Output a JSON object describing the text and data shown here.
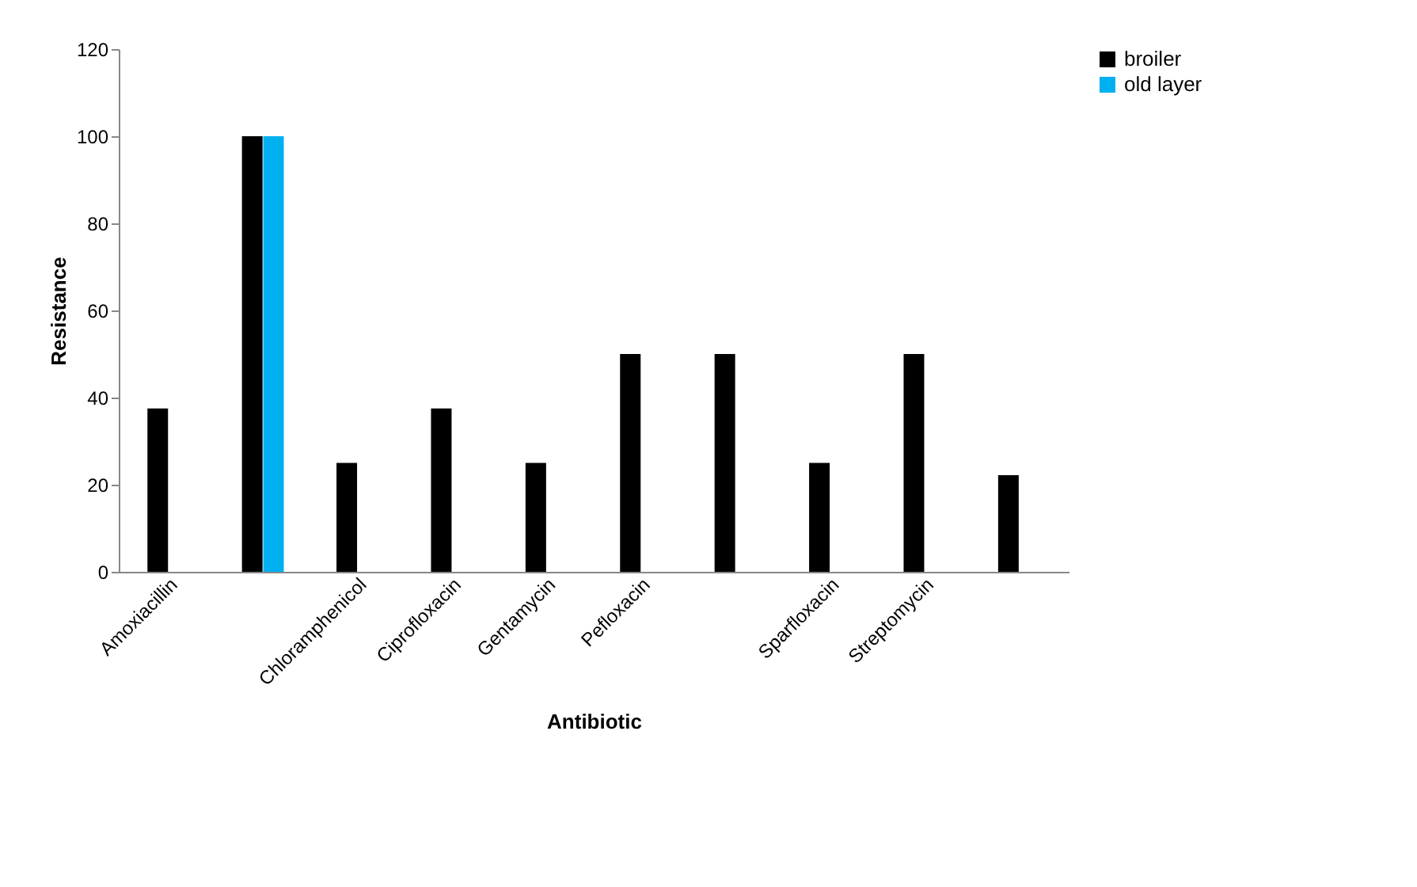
{
  "chart_data": {
    "type": "bar",
    "xlabel": "Antibiotic",
    "ylabel": "Resistance",
    "categories": [
      "Amoxiacillin",
      null,
      "Chloramphenicol",
      "Ciprofloxacin",
      "Gentamycin",
      "Pefloxacin",
      null,
      "Sparfloxacin",
      "Streptomycin",
      null
    ],
    "series": [
      {
        "name": "broiler",
        "color": "#000000",
        "values": [
          37.5,
          100,
          25,
          37.5,
          25,
          50,
          50,
          25,
          50,
          22.2
        ]
      },
      {
        "name": "old layer",
        "color": "#00b0f0",
        "values": [
          null,
          100,
          null,
          null,
          null,
          null,
          null,
          null,
          null,
          null
        ]
      }
    ],
    "ylim": [
      0,
      120
    ],
    "yticks": [
      0,
      20,
      40,
      60,
      80,
      100,
      120
    ],
    "grid": false,
    "legend": "right"
  }
}
